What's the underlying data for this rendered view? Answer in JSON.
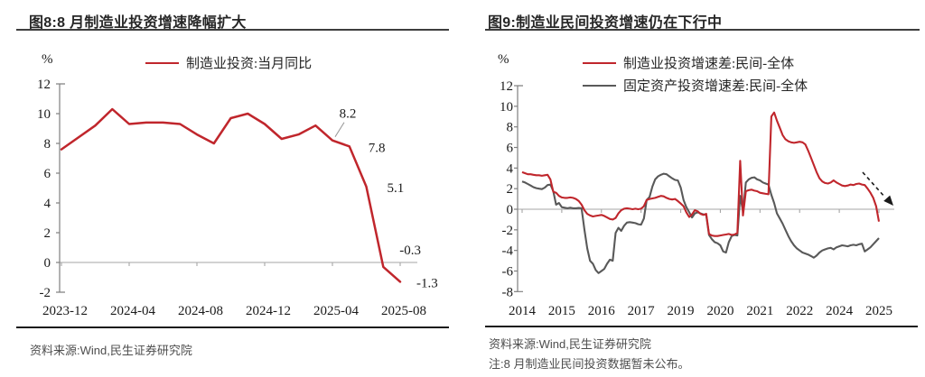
{
  "colors": {
    "red_series": "#c0262c",
    "gray_series": "#595959",
    "axis": "#7f7f7f",
    "zero_line": "#a6a6a6",
    "title_text": "#262626",
    "footer_text": "#4d4d4d",
    "annotation_arrow": "#1a1a1a"
  },
  "panels": [
    {
      "title": "图8:8 月制造业投资增速降幅扩大",
      "unit": "%",
      "legend": [
        {
          "label": "制造业投资:当月同比",
          "color": "#c0262c"
        }
      ],
      "source": "资料来源:Wind,民生证券研究院",
      "note": ""
    },
    {
      "title": "图9:制造业民间投资增速仍在下行中",
      "unit": "%",
      "legend": [
        {
          "label": "制造业投资增速差:民间-全体",
          "color": "#c0262c"
        },
        {
          "label": "固定资产投资增速差:民间-全体",
          "color": "#595959"
        }
      ],
      "source": "资料来源:Wind,民生证券研究院",
      "note": "注:8 月制造业民间投资数据暂未公布。"
    }
  ],
  "chart_data": [
    {
      "type": "line",
      "title": "图8:8 月制造业投资增速降幅扩大",
      "ylabel": "%",
      "ylim": [
        -2,
        12
      ],
      "ytick_step": 2,
      "grid": false,
      "legend_position": "top",
      "x_categories": [
        "2023-12",
        "2024-01",
        "2024-02",
        "2024-03",
        "2024-04",
        "2024-05",
        "2024-06",
        "2024-07",
        "2024-08",
        "2024-09",
        "2024-10",
        "2024-11",
        "2024-12",
        "2025-01",
        "2025-02",
        "2025-03",
        "2025-04",
        "2025-05",
        "2025-06",
        "2025-07",
        "2025-08"
      ],
      "x_tick_labels": [
        "2023-12",
        "2024-04",
        "2024-08",
        "2024-12",
        "2025-04",
        "2025-08"
      ],
      "series": [
        {
          "name": "制造业投资:当月同比",
          "color": "#c0262c",
          "values": [
            7.6,
            8.4,
            9.2,
            10.3,
            9.3,
            9.4,
            9.4,
            9.3,
            8.6,
            8.0,
            9.7,
            10.0,
            9.3,
            8.3,
            8.6,
            9.2,
            8.2,
            7.8,
            5.1,
            -0.3,
            -1.3
          ]
        }
      ],
      "data_labels": [
        {
          "x": "2025-04",
          "text": "8.2"
        },
        {
          "x": "2025-05",
          "text": "7.8"
        },
        {
          "x": "2025-06",
          "text": "5.1"
        },
        {
          "x": "2025-07",
          "text": "-0.3"
        },
        {
          "x": "2025-08",
          "text": "-1.3"
        }
      ]
    },
    {
      "type": "line",
      "title": "图9:制造业民间投资增速仍在下行中",
      "ylabel": "%",
      "ylim": [
        -8,
        12
      ],
      "ytick_step": 2,
      "grid": false,
      "legend_position": "top",
      "x_start": "2014-02",
      "x_end": "2025-07",
      "x_tick_indices": [
        0,
        14,
        28,
        42,
        56,
        70,
        84,
        98,
        112,
        126
      ],
      "x_tick_labels": [
        "2014",
        "2015",
        "2016",
        "2017",
        "2019",
        "2020",
        "2021",
        "2022",
        "2024",
        "2025"
      ],
      "series": [
        {
          "name": "制造业投资增速差:民间-全体",
          "color": "#c0262c",
          "values": [
            3.6,
            3.5,
            3.4,
            3.4,
            3.35,
            3.3,
            3.3,
            3.25,
            3.3,
            3.35,
            2.9,
            1.7,
            1.6,
            1.3,
            1.15,
            1.1,
            1.1,
            1.15,
            1.1,
            1.0,
            0.8,
            0.45,
            -0.1,
            -0.45,
            -0.6,
            -0.7,
            -0.65,
            -0.6,
            -0.55,
            -0.65,
            -0.8,
            -0.95,
            -1.0,
            -0.85,
            -0.4,
            -0.1,
            0.05,
            0.1,
            0.05,
            0.0,
            0.05,
            0.0,
            0.05,
            0.3,
            0.9,
            1.0,
            1.05,
            1.1,
            1.2,
            1.3,
            1.25,
            1.1,
            1.0,
            0.95,
            1.0,
            0.8,
            0.55,
            0.3,
            -0.3,
            -0.75,
            -0.5,
            -0.1,
            -0.2,
            -0.45,
            -0.55,
            -0.45,
            -2.4,
            -2.55,
            -2.6,
            -2.6,
            -2.55,
            -2.5,
            -2.45,
            -2.4,
            -2.5,
            -2.45,
            -2.3,
            4.7,
            -0.6,
            1.75,
            1.85,
            1.9,
            1.8,
            1.75,
            1.6,
            1.55,
            1.5,
            1.45,
            9.0,
            9.4,
            8.6,
            7.9,
            7.2,
            6.8,
            6.6,
            6.5,
            6.45,
            6.5,
            6.55,
            6.5,
            6.3,
            5.7,
            5.0,
            4.3,
            3.6,
            3.0,
            2.7,
            2.55,
            2.5,
            2.6,
            2.8,
            2.6,
            2.45,
            2.3,
            2.25,
            2.3,
            2.4,
            2.35,
            2.45,
            2.5,
            2.4,
            2.35,
            2.0,
            1.6,
            1.1,
            0.3,
            -1.2
          ]
        },
        {
          "name": "固定资产投资增速差:民间-全体",
          "color": "#595959",
          "values": [
            2.7,
            2.6,
            2.45,
            2.3,
            2.15,
            2.05,
            2.0,
            1.95,
            2.1,
            2.35,
            2.4,
            1.75,
            0.45,
            0.6,
            0.2,
            0.15,
            0.1,
            0.15,
            0.1,
            0.1,
            0.12,
            0.1,
            -2.0,
            -3.8,
            -5.0,
            -5.3,
            -5.9,
            -6.2,
            -6.0,
            -5.8,
            -5.3,
            -4.9,
            -5.0,
            -2.3,
            -1.8,
            -2.1,
            -1.6,
            -1.3,
            -1.25,
            -1.3,
            -1.35,
            -1.45,
            -1.5,
            -0.9,
            0.9,
            1.2,
            2.2,
            2.9,
            3.2,
            3.35,
            3.45,
            3.4,
            3.2,
            3.0,
            2.85,
            2.8,
            2.1,
            0.9,
            0.2,
            -0.3,
            -0.8,
            -0.4,
            -0.3,
            -0.4,
            -0.5,
            -0.55,
            -2.5,
            -2.9,
            -3.2,
            -3.3,
            -3.5,
            -4.1,
            -4.2,
            -3.2,
            -2.6,
            -2.5,
            -2.55,
            1.3,
            -0.2,
            2.6,
            2.9,
            3.05,
            3.1,
            2.9,
            2.8,
            2.6,
            2.5,
            2.4,
            1.4,
            0.6,
            -0.4,
            -0.9,
            -1.4,
            -2.0,
            -2.6,
            -3.1,
            -3.5,
            -3.8,
            -4.0,
            -4.2,
            -4.3,
            -4.4,
            -4.55,
            -4.7,
            -4.5,
            -4.2,
            -4.0,
            -3.9,
            -3.8,
            -3.75,
            -3.9,
            -3.7,
            -3.6,
            -3.5,
            -3.55,
            -3.6,
            -3.5,
            -3.45,
            -3.5,
            -3.4,
            -3.35,
            -4.1,
            -3.9,
            -3.7,
            -3.4,
            -3.1,
            -2.8
          ]
        }
      ],
      "annotations": [
        {
          "type": "dashed_arrow",
          "direction": "down-right"
        }
      ]
    }
  ]
}
